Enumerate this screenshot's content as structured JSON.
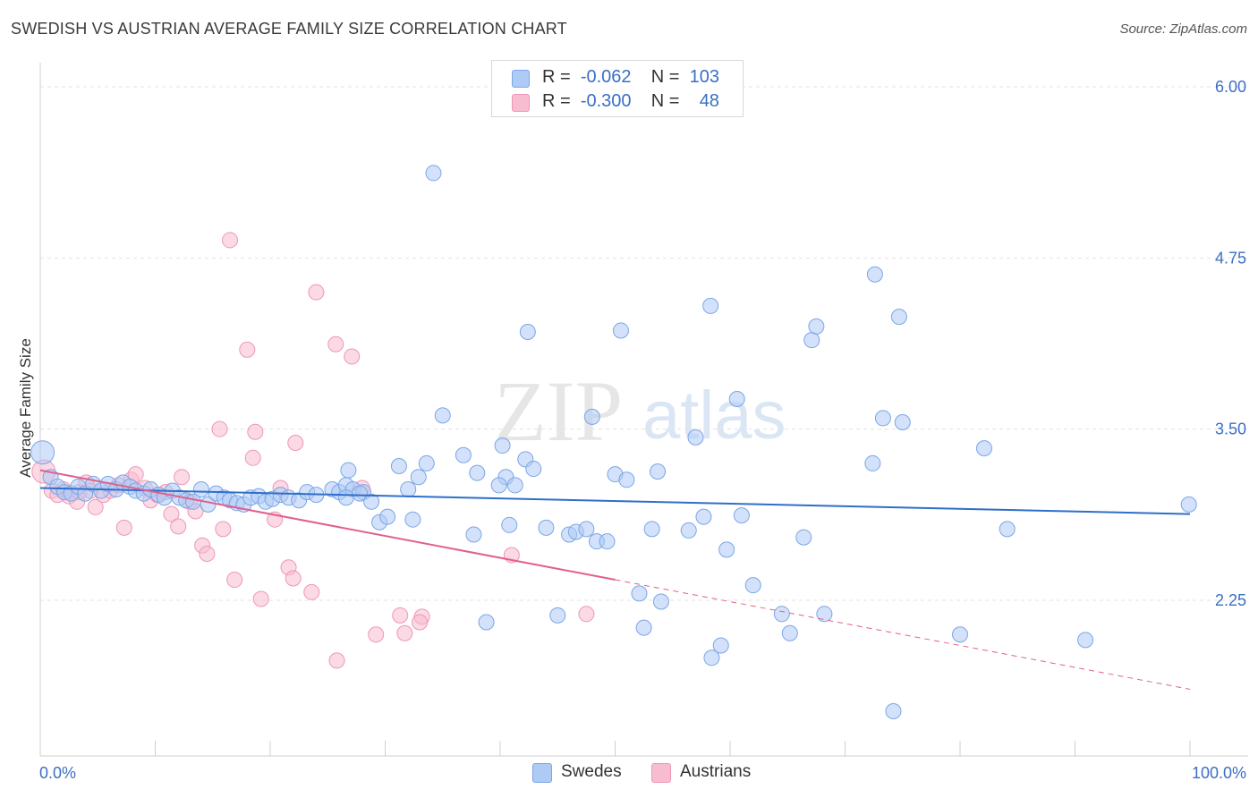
{
  "header": {
    "title": "SWEDISH VS AUSTRIAN AVERAGE FAMILY SIZE CORRELATION CHART",
    "source": "Source: ZipAtlas.com"
  },
  "watermark": {
    "zip": "ZIP",
    "atlas": "atlas"
  },
  "legend": {
    "rows": [
      {
        "r_label": "R =",
        "r_value": "-0.062",
        "n_label": "N =",
        "n_value": "103",
        "color": "#aecbf5"
      },
      {
        "r_label": "R =",
        "r_value": "-0.300",
        "n_label": "N =",
        "n_value": "48",
        "color": "#f8bcd0"
      }
    ]
  },
  "bottom_legend": {
    "swedes": "Swedes",
    "austrians": "Austrians"
  },
  "colors": {
    "swedes_fill": "#aecbf5",
    "swedes_stroke": "#7aa6e6",
    "swedes_line": "#2f6fc8",
    "austrians_fill": "#f8bcd0",
    "austrians_stroke": "#ee97b6",
    "austrians_line": "#e0608e",
    "tick_color": "#3a6fc4",
    "grid": "#e3e3e3"
  },
  "chart_data": {
    "type": "scatter",
    "title": "SWEDISH VS AUSTRIAN AVERAGE FAMILY SIZE CORRELATION CHART",
    "xlabel": "",
    "ylabel": "Average Family Size",
    "xlim": [
      0,
      100
    ],
    "ylim": [
      1.0,
      6.2
    ],
    "x_tick_labels": [
      "0.0%",
      "100.0%"
    ],
    "y_ticks": [
      2.25,
      3.5,
      4.75,
      6.0
    ],
    "y_tick_labels": [
      "2.25",
      "3.50",
      "4.75",
      "6.00"
    ],
    "grid": "horizontal dashed",
    "series": [
      {
        "name": "Swedes",
        "R": -0.062,
        "N": 103,
        "trend": {
          "x": [
            0,
            100
          ],
          "y": [
            3.07,
            2.88
          ]
        },
        "points": [
          [
            0.2,
            3.33,
            26
          ],
          [
            0.9,
            3.15,
            14
          ],
          [
            1.5,
            3.08,
            12
          ],
          [
            2.1,
            3.04,
            12
          ],
          [
            2.7,
            3.03,
            12
          ],
          [
            3.3,
            3.08,
            12
          ],
          [
            3.9,
            3.03,
            12
          ],
          [
            4.6,
            3.1,
            12
          ],
          [
            5.3,
            3.05,
            12
          ],
          [
            5.9,
            3.1,
            12
          ],
          [
            6.6,
            3.06,
            12
          ],
          [
            7.2,
            3.11,
            12
          ],
          [
            7.8,
            3.08,
            12
          ],
          [
            8.3,
            3.05,
            12
          ],
          [
            9.0,
            3.03,
            12
          ],
          [
            9.6,
            3.06,
            12
          ],
          [
            10.3,
            3.02,
            12
          ],
          [
            10.8,
            3.0,
            12
          ],
          [
            11.5,
            3.05,
            12
          ],
          [
            12.1,
            3.0,
            12
          ],
          [
            12.7,
            2.98,
            12
          ],
          [
            13.3,
            2.97,
            12
          ],
          [
            14.0,
            3.06,
            12
          ],
          [
            14.6,
            2.95,
            12
          ],
          [
            15.3,
            3.03,
            12
          ],
          [
            16.0,
            3.0,
            12
          ],
          [
            16.5,
            2.98,
            12
          ],
          [
            17.1,
            2.96,
            12
          ],
          [
            17.7,
            2.95,
            12
          ],
          [
            18.3,
            3.0,
            12
          ],
          [
            19.0,
            3.01,
            12
          ],
          [
            19.6,
            2.97,
            12
          ],
          [
            20.2,
            2.99,
            12
          ],
          [
            20.9,
            3.02,
            12
          ],
          [
            21.6,
            3.0,
            12
          ],
          [
            22.5,
            2.98,
            12
          ],
          [
            23.2,
            3.04,
            12
          ],
          [
            24.0,
            3.02,
            12
          ],
          [
            25.4,
            3.06,
            12
          ],
          [
            26.0,
            3.04,
            12
          ],
          [
            26.6,
            3.09,
            12
          ],
          [
            27.2,
            3.06,
            12
          ],
          [
            28.1,
            3.04,
            12
          ],
          [
            26.8,
            3.2,
            12
          ],
          [
            26.6,
            3.0,
            12
          ],
          [
            27.8,
            3.03,
            12
          ],
          [
            28.8,
            2.97,
            12
          ],
          [
            29.5,
            2.82,
            12
          ],
          [
            30.2,
            2.86,
            12
          ],
          [
            31.2,
            3.23,
            12
          ],
          [
            32.4,
            2.84,
            12
          ],
          [
            32.0,
            3.06,
            12
          ],
          [
            32.9,
            3.15,
            12
          ],
          [
            33.6,
            3.25,
            12
          ],
          [
            35.0,
            3.6,
            12
          ],
          [
            36.8,
            3.31,
            12
          ],
          [
            37.7,
            2.73,
            12
          ],
          [
            38.0,
            3.18,
            12
          ],
          [
            38.8,
            2.09,
            12
          ],
          [
            40.5,
            3.15,
            12
          ],
          [
            40.2,
            3.38,
            12
          ],
          [
            41.3,
            3.09,
            12
          ],
          [
            42.2,
            3.28,
            12
          ],
          [
            42.4,
            4.21,
            12
          ],
          [
            42.9,
            3.21,
            12
          ],
          [
            44.0,
            2.78,
            12
          ],
          [
            45.0,
            2.14,
            12
          ],
          [
            46.0,
            2.73,
            12
          ],
          [
            46.6,
            2.75,
            12
          ],
          [
            47.5,
            2.77,
            12
          ],
          [
            48.0,
            3.59,
            12
          ],
          [
            48.4,
            2.68,
            12
          ],
          [
            49.3,
            2.68,
            12
          ],
          [
            50.0,
            3.17,
            12
          ],
          [
            50.5,
            4.22,
            12
          ],
          [
            51.0,
            3.13,
            12
          ],
          [
            52.1,
            2.3,
            12
          ],
          [
            52.5,
            2.05,
            12
          ],
          [
            53.2,
            2.77,
            12
          ],
          [
            53.7,
            3.19,
            12
          ],
          [
            54.0,
            2.24,
            12
          ],
          [
            56.4,
            2.76,
            12
          ],
          [
            57.0,
            3.44,
            12
          ],
          [
            57.7,
            2.86,
            12
          ],
          [
            58.3,
            4.4,
            12
          ],
          [
            58.4,
            1.83,
            12
          ],
          [
            59.2,
            1.92,
            12
          ],
          [
            59.7,
            2.62,
            12
          ],
          [
            60.6,
            3.72,
            12
          ],
          [
            61.0,
            2.87,
            12
          ],
          [
            62.0,
            2.36,
            12
          ],
          [
            64.5,
            2.15,
            12
          ],
          [
            65.2,
            2.01,
            12
          ],
          [
            66.4,
            2.71,
            12
          ],
          [
            67.1,
            4.15,
            12
          ],
          [
            67.5,
            4.25,
            12
          ],
          [
            68.2,
            2.15,
            12
          ],
          [
            72.4,
            3.25,
            12
          ],
          [
            72.6,
            4.63,
            12
          ],
          [
            73.3,
            3.58,
            12
          ],
          [
            74.2,
            1.44,
            12
          ],
          [
            74.7,
            4.32,
            12
          ],
          [
            75.0,
            3.55,
            12
          ],
          [
            80.0,
            2.0,
            12
          ],
          [
            82.1,
            3.36,
            12
          ],
          [
            84.1,
            2.77,
            12
          ],
          [
            90.9,
            1.96,
            12
          ],
          [
            99.9,
            2.95,
            12
          ],
          [
            34.2,
            5.37,
            12
          ],
          [
            39.9,
            3.09,
            12
          ],
          [
            40.8,
            2.8,
            12
          ]
        ]
      },
      {
        "name": "Austrians",
        "R": -0.3,
        "N": 48,
        "trend": {
          "x": [
            0,
            50
          ],
          "y": [
            3.2,
            2.4
          ]
        },
        "trend_dashed": {
          "x": [
            50,
            100
          ],
          "y": [
            2.4,
            1.6
          ]
        },
        "points": [
          [
            0.3,
            3.19,
            24
          ],
          [
            1.0,
            3.05,
            12
          ],
          [
            1.5,
            3.02,
            12
          ],
          [
            2.0,
            3.06,
            12
          ],
          [
            2.5,
            3.01,
            12
          ],
          [
            3.2,
            2.97,
            12
          ],
          [
            3.4,
            3.04,
            12
          ],
          [
            4.0,
            3.11,
            12
          ],
          [
            4.4,
            3.05,
            12
          ],
          [
            4.8,
            2.93,
            12
          ],
          [
            5.5,
            3.02,
            12
          ],
          [
            6.1,
            3.05,
            12
          ],
          [
            6.8,
            3.09,
            12
          ],
          [
            7.3,
            2.78,
            12
          ],
          [
            7.9,
            3.13,
            12
          ],
          [
            8.3,
            3.17,
            12
          ],
          [
            9.1,
            3.07,
            12
          ],
          [
            9.6,
            2.98,
            12
          ],
          [
            10.2,
            3.02,
            12
          ],
          [
            10.9,
            3.04,
            12
          ],
          [
            11.4,
            2.88,
            12
          ],
          [
            12.0,
            2.79,
            12
          ],
          [
            12.3,
            3.15,
            12
          ],
          [
            13.0,
            2.97,
            12
          ],
          [
            13.5,
            2.9,
            12
          ],
          [
            14.1,
            2.65,
            12
          ],
          [
            14.5,
            2.59,
            12
          ],
          [
            15.6,
            3.5,
            12
          ],
          [
            15.9,
            2.77,
            12
          ],
          [
            16.5,
            4.88,
            12
          ],
          [
            16.9,
            2.4,
            12
          ],
          [
            18.0,
            4.08,
            12
          ],
          [
            18.5,
            3.29,
            12
          ],
          [
            18.7,
            3.48,
            12
          ],
          [
            19.2,
            2.26,
            12
          ],
          [
            20.4,
            2.84,
            12
          ],
          [
            20.9,
            3.07,
            12
          ],
          [
            21.6,
            2.49,
            12
          ],
          [
            22.0,
            2.41,
            12
          ],
          [
            22.2,
            3.4,
            12
          ],
          [
            23.6,
            2.31,
            12
          ],
          [
            24.0,
            4.5,
            12
          ],
          [
            25.7,
            4.12,
            12
          ],
          [
            25.8,
            1.81,
            12
          ],
          [
            27.1,
            4.03,
            12
          ],
          [
            28.0,
            3.07,
            12
          ],
          [
            29.2,
            2.0,
            12
          ],
          [
            31.3,
            2.14,
            12
          ],
          [
            31.7,
            2.01,
            12
          ],
          [
            33.2,
            2.13,
            12
          ],
          [
            33.0,
            2.09,
            12
          ],
          [
            41.0,
            2.58,
            12
          ],
          [
            47.5,
            2.15,
            12
          ]
        ]
      }
    ]
  }
}
